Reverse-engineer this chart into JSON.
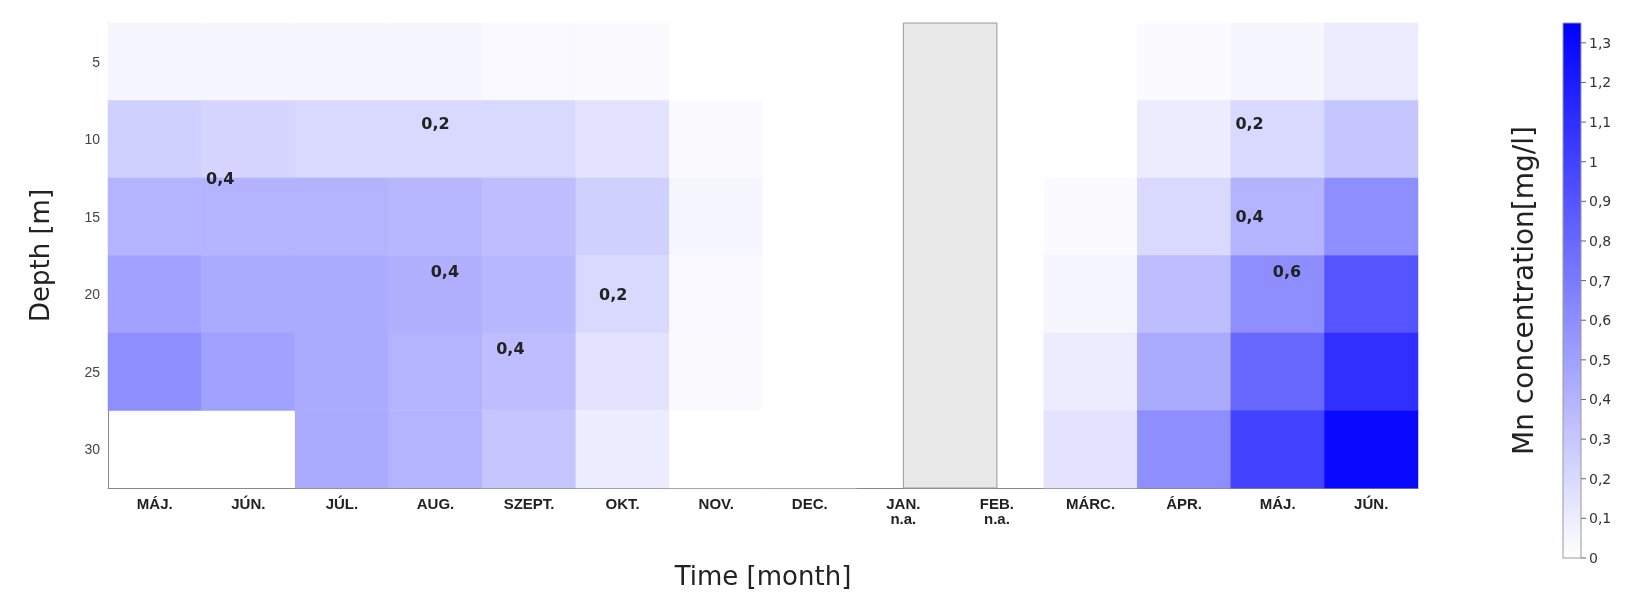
{
  "chart_data": {
    "type": "heatmap",
    "xlabel": "Time [month]",
    "ylabel": "Depth [m]",
    "clabel": "Mn concentration[mg/l]",
    "categories": [
      "MÁJ.",
      "JÚN.",
      "JÚL.",
      "AUG.",
      "SZEPT.",
      "OKT.",
      "NOV.",
      "DEC.",
      "JAN.\nn.a.",
      "FEB.\nn.a.",
      "MÁRC.",
      "ÁPR.",
      "MÁJ.",
      "JÚN."
    ],
    "y_categories": [
      "5",
      "10",
      "15",
      "20",
      "25",
      "30"
    ],
    "cells": [
      [
        0.05,
        0.05,
        0.05,
        0.05,
        0.03,
        0.02,
        0,
        0,
        null,
        null,
        0,
        0.02,
        0.05,
        0.1
      ],
      [
        0.25,
        0.22,
        0.2,
        0.2,
        0.2,
        0.15,
        0.02,
        0,
        null,
        null,
        0,
        0.1,
        0.2,
        0.3
      ],
      [
        0.4,
        0.4,
        0.4,
        0.38,
        0.35,
        0.25,
        0.05,
        0,
        null,
        null,
        0.02,
        0.2,
        0.4,
        0.6
      ],
      [
        0.5,
        0.45,
        0.45,
        0.42,
        0.38,
        0.2,
        0.03,
        0,
        null,
        null,
        0.05,
        0.35,
        0.6,
        0.9
      ],
      [
        0.6,
        0.5,
        0.45,
        0.4,
        0.35,
        0.15,
        0.02,
        0,
        null,
        null,
        0.1,
        0.45,
        0.8,
        1.1
      ],
      [
        null,
        null,
        0.45,
        0.4,
        0.3,
        0.1,
        0,
        0,
        null,
        null,
        0.15,
        0.6,
        1.0,
        1.3
      ]
    ],
    "clim": [
      0,
      1.35
    ],
    "cticks": [
      0,
      {
        "value": 0.1,
        "label": "0,1"
      },
      {
        "value": 0.2,
        "label": "0,2"
      },
      {
        "value": 0.3,
        "label": "0,3"
      },
      {
        "value": 0.4,
        "label": "0,4"
      },
      {
        "value": 0.5,
        "label": "0,5"
      },
      {
        "value": 0.6,
        "label": "0,6"
      },
      {
        "value": 0.7,
        "label": "0,7"
      },
      {
        "value": 0.8,
        "label": "0,8"
      },
      {
        "value": 0.9,
        "label": "0,9"
      },
      1,
      {
        "value": 1.1,
        "label": "1,1"
      },
      {
        "value": 1.2,
        "label": "1,2"
      },
      {
        "value": 1.3,
        "label": "1,3"
      }
    ],
    "colors": [
      "#ffffff",
      "#0000ff"
    ],
    "bands": [
      {
        "axis": "x",
        "from": "JAN.\nn.a.",
        "to": "FEB.\nn.a.",
        "color": "#e8e8e8"
      }
    ],
    "annotations": [
      "0,4",
      "0,2",
      "0,4",
      "0,4",
      "0,2",
      "0,2",
      "0,4",
      "0,6"
    ]
  }
}
